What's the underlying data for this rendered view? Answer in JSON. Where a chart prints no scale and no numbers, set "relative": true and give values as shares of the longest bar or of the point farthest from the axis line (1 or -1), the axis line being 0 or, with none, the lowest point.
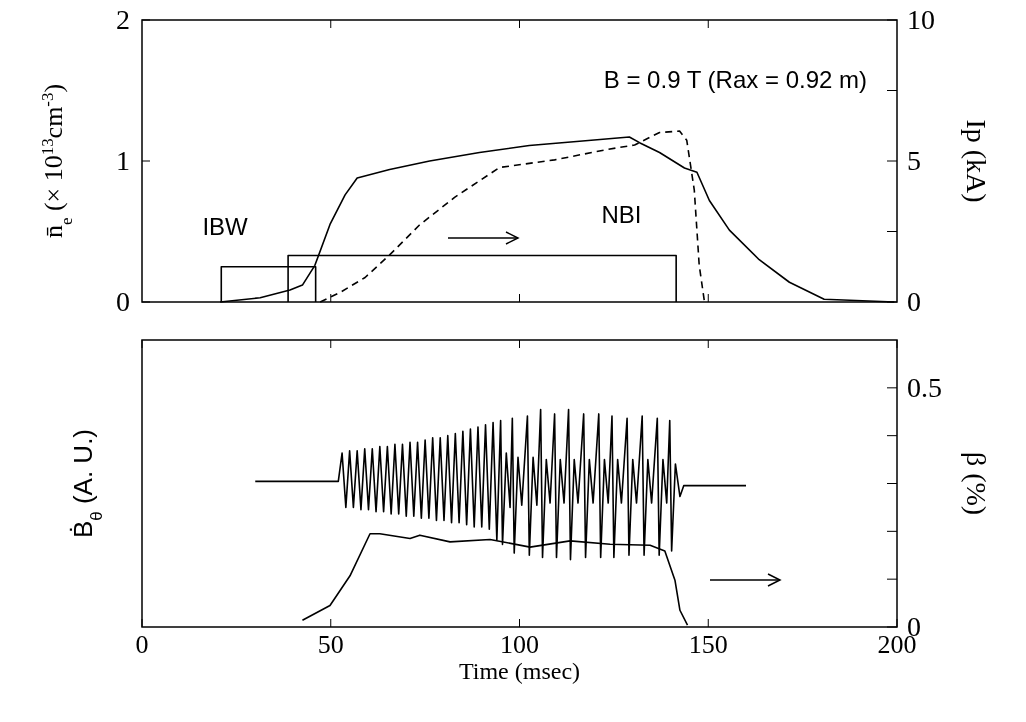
{
  "chart_data": [
    {
      "type": "line",
      "ylabel": "n̄$_{e}$ (× 10$^{13}$cm$^{-3}$)",
      "y2label": "Ip (kA)",
      "xlim": [
        0,
        200
      ],
      "xticks": [
        {
          "value": 50,
          "label": null
        },
        {
          "value": 100,
          "label": null
        },
        {
          "value": 150,
          "label": null
        }
      ],
      "ylim": [
        0,
        2
      ],
      "yticks": [
        0,
        1,
        2
      ],
      "y2lim": [
        0,
        10
      ],
      "y2ticks": [
        0,
        {
          "value": 2.5,
          "label": null
        },
        5,
        {
          "value": 7.5,
          "label": null
        },
        10
      ],
      "tick_labels": "y",
      "annotations": [
        "B = 0.9 T (Rax = 0.92 m)",
        {
          "text": "IBW",
          "x": 22,
          "y": 0.25
        },
        {
          "text": "NBI",
          "x": 127,
          "y": 0.33
        }
      ],
      "series": [
        {
          "color": "#000000",
          "x": [
            20.7,
            31.3,
            39.2,
            42.5,
            45.8,
            49.8,
            53.8,
            57.0,
            65.6,
            76.2,
            89.4,
            102.6,
            115.9,
            129.1,
            131.8,
            137.1,
            143.7,
            147.0,
            150.3,
            155.6,
            163.5,
            171.5,
            180.7,
            199.3
          ],
          "values": [
            0,
            0.03,
            0.085,
            0.12,
            0.26,
            0.55,
            0.76,
            0.88,
            0.94,
            1.0,
            1.06,
            1.11,
            1.14,
            1.17,
            1.13,
            1.06,
            0.95,
            0.92,
            0.72,
            0.51,
            0.3,
            0.14,
            0.02,
            0
          ]
        },
        {
          "color": "#000000",
          "axis": "y2",
          "line_style": "dashed",
          "x": [
            47.2,
            52.5,
            59.1,
            65.6,
            73.5,
            82.8,
            94.7,
            109.3,
            122.5,
            130.5,
            137.1,
            142.4,
            144.3,
            146.3,
            147.6,
            149.0
          ],
          "values": [
            0,
            0.34,
            0.87,
            1.67,
            2.73,
            3.71,
            4.77,
            5.04,
            5.39,
            5.57,
            6.01,
            6.06,
            5.74,
            3.97,
            1.31,
            0
          ]
        },
        {
          "color": "#000000",
          "x": [
            21,
            21,
            46,
            46
          ],
          "values": [
            0,
            0.25,
            0.25,
            0
          ]
        },
        {
          "color": "#000000",
          "x": [
            38.7,
            38.7,
            141.5,
            141.5
          ],
          "values": [
            0,
            0.33,
            0.33,
            0
          ]
        }
      ]
    },
    {
      "type": "line",
      "xlabel": "Time (msec)",
      "ylabel": "Ḃ$_{θ}$ (A. U.)",
      "y2label": "β (%)",
      "relative": true,
      "xlim": [
        0,
        200
      ],
      "xticks": [
        0,
        50,
        100,
        150,
        200
      ],
      "y2lim": [
        0,
        0.6
      ],
      "y2ticks": [
        0,
        {
          "value": 0.1,
          "label": null
        },
        {
          "value": 0.2,
          "label": null
        },
        {
          "value": 0.3,
          "label": null
        },
        {
          "value": 0.4,
          "label": null
        },
        0.5
      ],
      "series": [
        {
          "color": "#000000",
          "x": [
            30,
            52,
            53,
            54,
            55,
            56,
            57,
            58,
            59,
            60,
            61,
            62,
            63,
            64,
            65,
            66,
            67,
            68,
            69,
            70,
            71,
            72,
            73,
            74,
            75,
            76,
            77,
            78,
            79,
            80,
            81,
            82,
            83,
            84,
            85,
            86,
            87,
            88,
            89,
            90,
            91,
            92,
            93,
            94,
            95,
            95.5,
            96.5,
            97.5,
            98.1,
            98.6,
            99.6,
            100.6,
            102.1,
            102.6,
            103.6,
            104.6,
            105.6,
            106.1,
            107.1,
            108.1,
            109.3,
            109.8,
            110.8,
            111.8,
            113.0,
            113.5,
            114.5,
            115.5,
            117.0,
            117.5,
            118.5,
            119.5,
            121.0,
            121.5,
            122.5,
            123.5,
            124.5,
            125.0,
            126.0,
            127.0,
            128.5,
            129.0,
            130.0,
            131.0,
            132.5,
            133.0,
            134.0,
            135.0,
            136.5,
            137.0,
            138.0,
            139.0,
            139.8,
            140.3,
            141.3,
            142.5,
            143.5,
            160
          ],
          "values": [
            0.67,
            0.67,
            0.8,
            0.55,
            0.81,
            0.55,
            0.81,
            0.54,
            0.82,
            0.54,
            0.82,
            0.53,
            0.83,
            0.53,
            0.83,
            0.52,
            0.84,
            0.52,
            0.84,
            0.51,
            0.85,
            0.51,
            0.85,
            0.5,
            0.86,
            0.5,
            0.87,
            0.49,
            0.87,
            0.49,
            0.88,
            0.48,
            0.89,
            0.48,
            0.9,
            0.47,
            0.91,
            0.46,
            0.92,
            0.46,
            0.93,
            0.45,
            0.94,
            0.4,
            0.95,
            0.38,
            0.8,
            0.55,
            0.96,
            0.34,
            0.78,
            0.56,
            0.97,
            0.33,
            0.78,
            0.56,
            1,
            0.32,
            0.77,
            0.57,
            0.98,
            0.32,
            0.77,
            0.57,
            1,
            0.31,
            0.77,
            0.57,
            0.98,
            0.32,
            0.77,
            0.57,
            0.98,
            0.32,
            0.77,
            0.57,
            0.97,
            0.32,
            0.77,
            0.57,
            0.96,
            0.33,
            0.77,
            0.57,
            0.97,
            0.33,
            0.77,
            0.57,
            0.96,
            0.33,
            0.77,
            0.57,
            0.95,
            0.35,
            0.75,
            0.6,
            0.65,
            0.65
          ]
        },
        {
          "color": "#000000",
          "axis": "y2",
          "x": [
            42.5,
            49.8,
            55.1,
            60.4,
            63.0,
            71.0,
            73.6,
            81.6,
            92.2,
            102.8,
            113.4,
            124.0,
            134.6,
            138.5,
            141.2,
            142.5,
            144.5
          ],
          "values": [
            0.014,
            0.045,
            0.107,
            0.195,
            0.195,
            0.185,
            0.192,
            0.178,
            0.183,
            0.167,
            0.18,
            0.173,
            0.171,
            0.159,
            0.097,
            0.035,
            0.004
          ]
        }
      ]
    }
  ]
}
